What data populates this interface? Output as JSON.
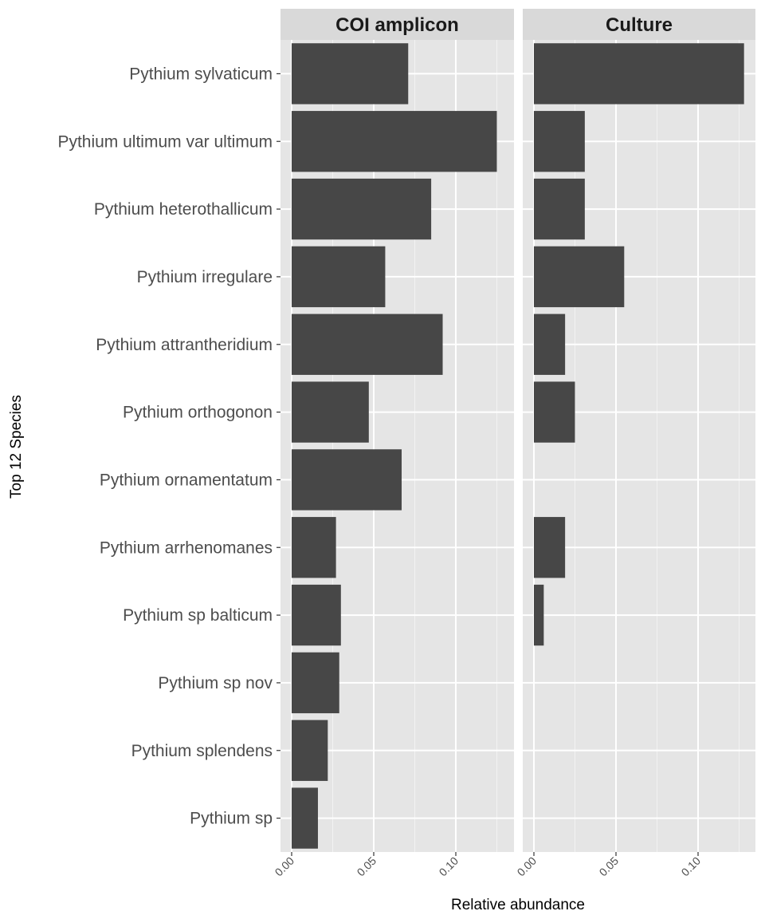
{
  "chart_data": {
    "type": "bar",
    "orientation": "horizontal",
    "xlabel": "Relative abundance",
    "ylabel": "Top 12 Species",
    "xlim": [
      0,
      0.13
    ],
    "x_ticks": [
      0.0,
      0.05,
      0.1
    ],
    "x_tick_labels": [
      "0.00",
      "0.05",
      "0.10"
    ],
    "grid": true,
    "categories": [
      "Pythium sylvaticum",
      "Pythium ultimum var ultimum",
      "Pythium heterothallicum",
      "Pythium irregulare",
      "Pythium attrantheridium",
      "Pythium orthogonon",
      "Pythium ornamentatum",
      "Pythium arrhenomanes",
      "Pythium sp balticum",
      "Pythium sp nov",
      "Pythium splendens",
      "Pythium sp"
    ],
    "panels": [
      {
        "name": "COI amplicon",
        "values": [
          0.071,
          0.125,
          0.085,
          0.057,
          0.092,
          0.047,
          0.067,
          0.027,
          0.03,
          0.029,
          0.022,
          0.016
        ]
      },
      {
        "name": "Culture",
        "values": [
          0.128,
          0.031,
          0.031,
          0.055,
          0.019,
          0.025,
          0,
          0.019,
          0.006,
          0,
          0,
          0
        ]
      }
    ]
  },
  "colors": {
    "panel_background": "#e5e5e5",
    "strip_background": "#d9d9d9",
    "bar_fill": "#474747",
    "grid_major": "#ffffff",
    "grid_minor": "#f2f2f2",
    "text": "#4d4d4d"
  }
}
